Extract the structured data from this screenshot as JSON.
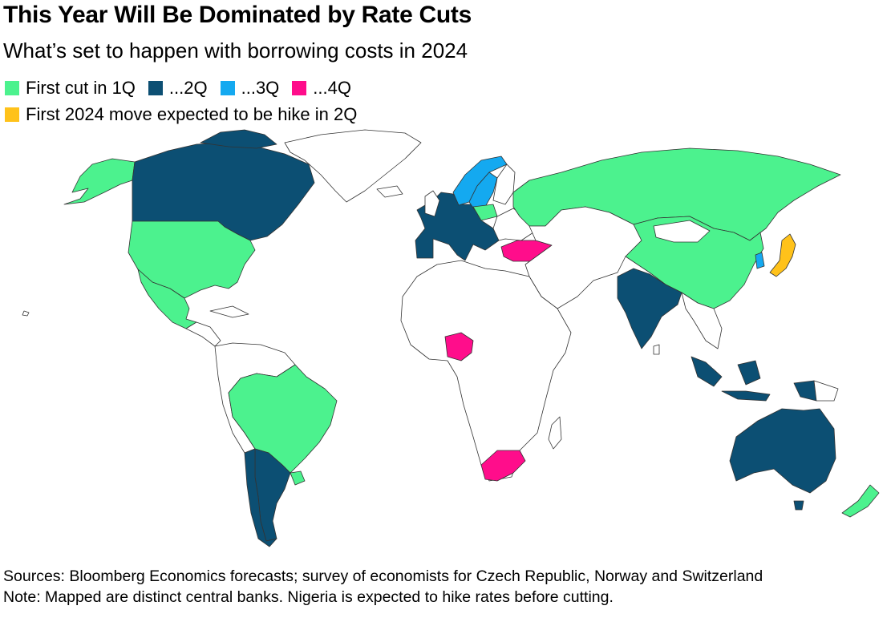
{
  "header": {
    "title": "This Year Will Be Dominated by Rate Cuts",
    "subtitle": "What’s set to happen with borrowing costs in 2024"
  },
  "legend": {
    "items": [
      {
        "label": "First cut in 1Q",
        "color": "#4cf28e"
      },
      {
        "label": "...2Q",
        "color": "#0c4f73"
      },
      {
        "label": "...3Q",
        "color": "#14a9f0"
      },
      {
        "label": "...4Q",
        "color": "#ff0d8b"
      },
      {
        "label": "First 2024 move expected to be hike in 2Q",
        "color": "#ffc21a"
      }
    ]
  },
  "colors": {
    "q1": "#4cf28e",
    "q2": "#0c4f73",
    "q3": "#14a9f0",
    "q4": "#ff0d8b",
    "hike": "#ffc21a",
    "none": "#ffffff"
  },
  "regions": [
    {
      "name": "Canada",
      "category": "q2"
    },
    {
      "name": "Greenland",
      "category": "none"
    },
    {
      "name": "Alaska",
      "category": "q1"
    },
    {
      "name": "United States",
      "category": "q1"
    },
    {
      "name": "Mexico",
      "category": "q1"
    },
    {
      "name": "Brazil",
      "category": "q1"
    },
    {
      "name": "Argentina",
      "category": "q2"
    },
    {
      "name": "Chile",
      "category": "q2"
    },
    {
      "name": "Uruguay",
      "category": "q1"
    },
    {
      "name": "Euro area",
      "category": "q2"
    },
    {
      "name": "Sweden",
      "category": "q3"
    },
    {
      "name": "Norway",
      "category": "q3"
    },
    {
      "name": "Czech Republic",
      "category": "q1"
    },
    {
      "name": "Russia",
      "category": "q1"
    },
    {
      "name": "China",
      "category": "q1"
    },
    {
      "name": "Japan",
      "category": "hike"
    },
    {
      "name": "South Korea",
      "category": "q3"
    },
    {
      "name": "India",
      "category": "q2"
    },
    {
      "name": "Indonesia",
      "category": "q2"
    },
    {
      "name": "Australia",
      "category": "q2"
    },
    {
      "name": "New Zealand",
      "category": "q1"
    },
    {
      "name": "Turkey",
      "category": "q4"
    },
    {
      "name": "Nigeria",
      "category": "q4"
    },
    {
      "name": "South Africa",
      "category": "q4"
    }
  ],
  "footer": {
    "sources": "Sources: Bloomberg Economics forecasts; survey of economists for Czech Republic, Norway and Switzerland",
    "note": "Note: Mapped are distinct central banks. Nigeria is expected to hike rates before cutting."
  }
}
